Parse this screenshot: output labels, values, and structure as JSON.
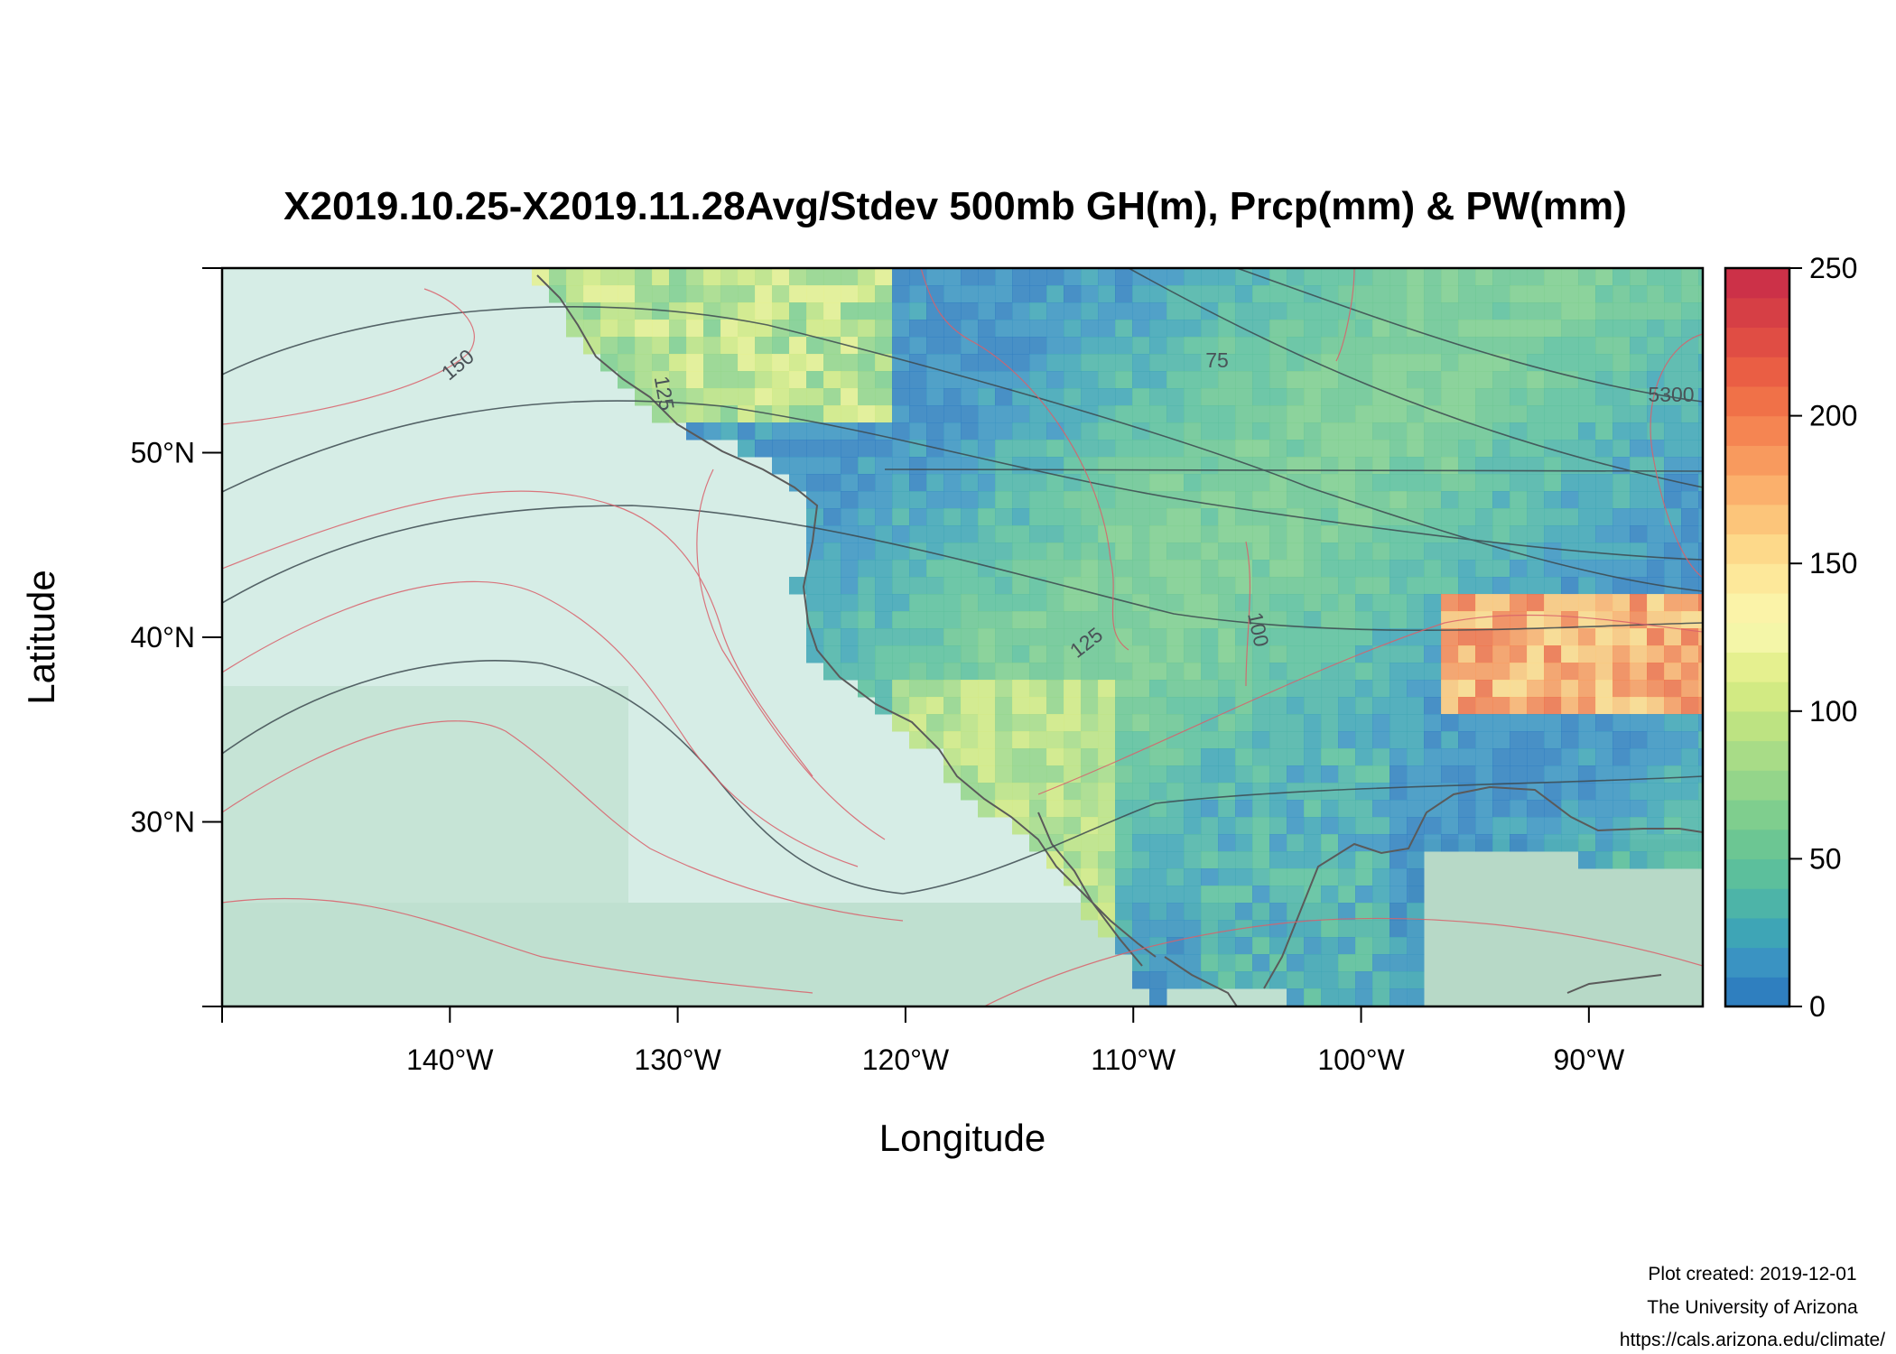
{
  "title": "X2019.10.25-X2019.11.28Avg/Stdev 500mb GH(m), Prcp(mm) & PW(mm)",
  "x_axis": {
    "label": "Longitude",
    "ticks": [
      {
        "value": -140,
        "label": "140°W"
      },
      {
        "value": -130,
        "label": "130°W"
      },
      {
        "value": -120,
        "label": "120°W"
      },
      {
        "value": -110,
        "label": "110°W"
      },
      {
        "value": -100,
        "label": "100°W"
      },
      {
        "value": -90,
        "label": "90°W"
      }
    ]
  },
  "y_axis": {
    "label": "Latitude",
    "ticks": [
      {
        "value": 50,
        "label": "50°N"
      },
      {
        "value": 40,
        "label": "40°N"
      },
      {
        "value": 30,
        "label": "30°N"
      }
    ]
  },
  "colorbar": {
    "min": 0,
    "max": 250,
    "ticks": [
      {
        "value": 250,
        "label": "250"
      },
      {
        "value": 200,
        "label": "200"
      },
      {
        "value": 150,
        "label": "150"
      },
      {
        "value": 100,
        "label": "100"
      },
      {
        "value": 50,
        "label": "50"
      },
      {
        "value": 0,
        "label": "0"
      }
    ],
    "palette": [
      "#2f7fbf",
      "#3a93c2",
      "#3ea5b6",
      "#4db4a8",
      "#5cbf9c",
      "#6cc693",
      "#7fce8e",
      "#94d58a",
      "#a8dc87",
      "#bde382",
      "#d2ea83",
      "#e5f08f",
      "#f4f6a8",
      "#fbf3a8",
      "#fde89a",
      "#fdd98a",
      "#fcc57a",
      "#fbb06c",
      "#f89a5e",
      "#f58552",
      "#f07148",
      "#ea5e44",
      "#e04d44",
      "#d63f45",
      "#cc3148"
    ]
  },
  "contour_labels": [
    {
      "text": "150",
      "kind": "pw"
    },
    {
      "text": "125",
      "kind": "pw"
    },
    {
      "text": "75",
      "kind": "pw"
    },
    {
      "text": "125",
      "kind": "pw"
    },
    {
      "text": "100",
      "kind": "pw"
    },
    {
      "text": "5300",
      "kind": "gh"
    }
  ],
  "credits": {
    "line1": "Plot created: 2019-12-01",
    "line2": "The University of Arizona",
    "line3": "https://cals.arizona.edu/climate/"
  },
  "colors": {
    "gh_contour": "#3d4a50",
    "pw_contour": "#d9606a",
    "coast": "#555555",
    "ocean": "#cfe9df"
  }
}
